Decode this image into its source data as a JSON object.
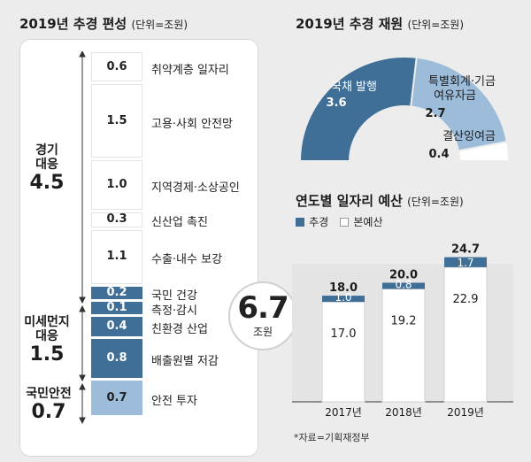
{
  "left": {
    "title": "2019년 추경 편성",
    "unit": "(단위=조원)",
    "segments": [
      {
        "value": "0.6",
        "label": "취약계층 일자리",
        "group": "econ"
      },
      {
        "value": "1.5",
        "label": "고용·사회 안전망",
        "group": "econ"
      },
      {
        "value": "1.0",
        "label": "지역경제·소상공인",
        "group": "econ"
      },
      {
        "value": "0.3",
        "label": "신산업 촉진",
        "group": "econ"
      },
      {
        "value": "1.1",
        "label": "수출·내수 보강",
        "group": "econ"
      },
      {
        "value": "0.2",
        "label": "국민 건강",
        "group": "dust"
      },
      {
        "value": "0.1",
        "label": "측정·감시",
        "group": "dust"
      },
      {
        "value": "0.4",
        "label": "친환경 산업",
        "group": "dust"
      },
      {
        "value": "0.8",
        "label": "배출원별 저감",
        "group": "dust"
      },
      {
        "value": "0.7",
        "label": "안전 투자",
        "group": "safety"
      }
    ],
    "groups": [
      {
        "title": "경기 대응",
        "line1": "경기",
        "line2": "대응",
        "total": "4.5"
      },
      {
        "title": "미세먼지 대응",
        "line1": "미세먼지",
        "line2": "대응",
        "total": "1.5"
      },
      {
        "title": "국민안전",
        "line1": "국민안전",
        "line2": "",
        "total": "0.7"
      }
    ],
    "total_value": "6.7",
    "total_unit": "조원",
    "colors": {
      "econ": "#ffffff",
      "dust": "#3f6f96",
      "safety": "#9cbcd9",
      "panel": "#ffffff"
    }
  },
  "chart_data": [
    {
      "type": "pie",
      "title": "2019년 추경 재원",
      "unit": "(단위=조원)",
      "slices": [
        {
          "name": "국채 발행",
          "value": 3.6,
          "label": "3.6",
          "color": "#3f6f96"
        },
        {
          "name": "특별회계·기금 여유자금",
          "name_line1": "특별회계·기금",
          "name_line2": "여유자금",
          "value": 2.7,
          "label": "2.7",
          "color": "#9cbcd9"
        },
        {
          "name": "결산잉여금",
          "value": 0.4,
          "label": "0.4",
          "color": "#ffffff"
        }
      ],
      "shape": "half-donut"
    },
    {
      "type": "bar",
      "stacked": true,
      "title": "연도별 일자리 예산",
      "unit": "(단위=조원)",
      "categories": [
        "2017년",
        "2018년",
        "2019년"
      ],
      "series": [
        {
          "name": "본예산",
          "values": [
            17.0,
            19.2,
            22.9
          ],
          "labels": [
            "17.0",
            "19.2",
            "22.9"
          ],
          "color": "#ffffff"
        },
        {
          "name": "추경",
          "values": [
            1.0,
            0.8,
            1.7
          ],
          "labels": [
            "1.0",
            "0.8",
            "1.7"
          ],
          "color": "#3f6f96"
        }
      ],
      "totals": [
        "18.0",
        "20.0",
        "24.7"
      ],
      "legend": [
        "추경",
        "본예산"
      ],
      "source": "*자료=기획재정부"
    }
  ]
}
